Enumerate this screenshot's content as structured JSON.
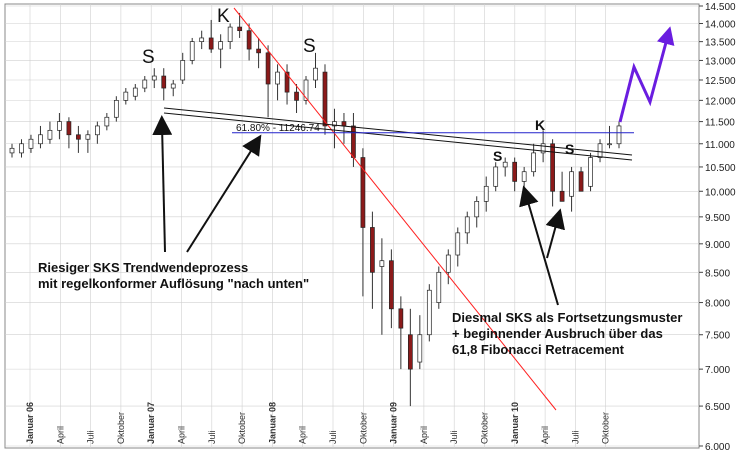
{
  "chart_data": {
    "type": "candlestick",
    "y_scale": "log",
    "ylim": [
      6.0,
      14.5
    ],
    "y_ticks": [
      "6.000",
      "6.500",
      "7.000",
      "7.500",
      "8.000",
      "8.500",
      "9.000",
      "9.500",
      "10.000",
      "10.500",
      "11.000",
      "11.500",
      "12.000",
      "12.500",
      "13.000",
      "13.500",
      "14.000",
      "14.500"
    ],
    "x_ticks": [
      {
        "label": "Januar 06",
        "year": true
      },
      {
        "label": "April",
        "year": false
      },
      {
        "label": "Juli",
        "year": false
      },
      {
        "label": "Oktober",
        "year": false
      },
      {
        "label": "Januar 07",
        "year": true
      },
      {
        "label": "April",
        "year": false
      },
      {
        "label": "Juli",
        "year": false
      },
      {
        "label": "Oktober",
        "year": false
      },
      {
        "label": "Januar 08",
        "year": true
      },
      {
        "label": "April",
        "year": false
      },
      {
        "label": "Juli",
        "year": false
      },
      {
        "label": "Oktober",
        "year": false
      },
      {
        "label": "Januar 09",
        "year": true
      },
      {
        "label": "April",
        "year": false
      },
      {
        "label": "Juli",
        "year": false
      },
      {
        "label": "Oktober",
        "year": false
      },
      {
        "label": "Januar 10",
        "year": true
      },
      {
        "label": "April",
        "year": false
      },
      {
        "label": "Juli",
        "year": false
      },
      {
        "label": "Oktober",
        "year": false
      }
    ],
    "candles": [
      {
        "o": 10.8,
        "h": 11.0,
        "l": 10.7,
        "c": 10.9
      },
      {
        "o": 10.8,
        "h": 11.1,
        "l": 10.7,
        "c": 11.0
      },
      {
        "o": 10.9,
        "h": 11.2,
        "l": 10.8,
        "c": 11.1
      },
      {
        "o": 11.0,
        "h": 11.4,
        "l": 10.9,
        "c": 11.2
      },
      {
        "o": 11.1,
        "h": 11.5,
        "l": 11.0,
        "c": 11.3
      },
      {
        "o": 11.3,
        "h": 11.7,
        "l": 11.1,
        "c": 11.5
      },
      {
        "o": 11.5,
        "h": 11.6,
        "l": 10.9,
        "c": 11.2
      },
      {
        "o": 11.2,
        "h": 11.4,
        "l": 10.8,
        "c": 11.1
      },
      {
        "o": 11.1,
        "h": 11.3,
        "l": 10.8,
        "c": 11.2
      },
      {
        "o": 11.2,
        "h": 11.5,
        "l": 11.0,
        "c": 11.4
      },
      {
        "o": 11.4,
        "h": 11.7,
        "l": 11.3,
        "c": 11.6
      },
      {
        "o": 11.6,
        "h": 12.1,
        "l": 11.5,
        "c": 12.0
      },
      {
        "o": 12.0,
        "h": 12.3,
        "l": 11.9,
        "c": 12.2
      },
      {
        "o": 12.1,
        "h": 12.4,
        "l": 12.0,
        "c": 12.3
      },
      {
        "o": 12.3,
        "h": 12.6,
        "l": 12.2,
        "c": 12.5
      },
      {
        "o": 12.5,
        "h": 12.8,
        "l": 12.3,
        "c": 12.6
      },
      {
        "o": 12.6,
        "h": 12.8,
        "l": 12.0,
        "c": 12.3
      },
      {
        "o": 12.3,
        "h": 12.5,
        "l": 12.1,
        "c": 12.4
      },
      {
        "o": 12.5,
        "h": 13.2,
        "l": 12.4,
        "c": 13.0
      },
      {
        "o": 13.0,
        "h": 13.6,
        "l": 12.9,
        "c": 13.5
      },
      {
        "o": 13.5,
        "h": 13.8,
        "l": 13.3,
        "c": 13.6
      },
      {
        "o": 13.6,
        "h": 14.1,
        "l": 13.2,
        "c": 13.3
      },
      {
        "o": 13.3,
        "h": 13.7,
        "l": 12.8,
        "c": 13.5
      },
      {
        "o": 13.5,
        "h": 14.0,
        "l": 13.3,
        "c": 13.9
      },
      {
        "o": 13.9,
        "h": 14.3,
        "l": 13.6,
        "c": 13.8
      },
      {
        "o": 13.8,
        "h": 14.0,
        "l": 13.0,
        "c": 13.3
      },
      {
        "o": 13.3,
        "h": 13.6,
        "l": 12.8,
        "c": 13.2
      },
      {
        "o": 13.2,
        "h": 13.4,
        "l": 11.6,
        "c": 12.4
      },
      {
        "o": 12.4,
        "h": 12.9,
        "l": 12.0,
        "c": 12.7
      },
      {
        "o": 12.7,
        "h": 12.9,
        "l": 11.9,
        "c": 12.2
      },
      {
        "o": 12.2,
        "h": 12.4,
        "l": 11.7,
        "c": 12.0
      },
      {
        "o": 12.0,
        "h": 12.6,
        "l": 11.9,
        "c": 12.5
      },
      {
        "o": 12.5,
        "h": 13.2,
        "l": 12.3,
        "c": 12.8
      },
      {
        "o": 12.7,
        "h": 12.9,
        "l": 11.2,
        "c": 11.4
      },
      {
        "o": 11.4,
        "h": 11.8,
        "l": 10.9,
        "c": 11.5
      },
      {
        "o": 11.5,
        "h": 11.7,
        "l": 11.0,
        "c": 11.4
      },
      {
        "o": 11.4,
        "h": 11.7,
        "l": 10.5,
        "c": 10.7
      },
      {
        "o": 10.7,
        "h": 10.9,
        "l": 8.1,
        "c": 9.3
      },
      {
        "o": 9.3,
        "h": 9.6,
        "l": 7.9,
        "c": 8.5
      },
      {
        "o": 8.6,
        "h": 9.1,
        "l": 7.5,
        "c": 8.7
      },
      {
        "o": 8.7,
        "h": 8.9,
        "l": 7.6,
        "c": 7.9
      },
      {
        "o": 7.9,
        "h": 8.1,
        "l": 7.0,
        "c": 7.6
      },
      {
        "o": 7.5,
        "h": 7.9,
        "l": 6.5,
        "c": 7.0
      },
      {
        "o": 7.1,
        "h": 7.8,
        "l": 7.0,
        "c": 7.5
      },
      {
        "o": 7.5,
        "h": 8.3,
        "l": 7.4,
        "c": 8.2
      },
      {
        "o": 8.0,
        "h": 8.6,
        "l": 7.9,
        "c": 8.5
      },
      {
        "o": 8.5,
        "h": 8.9,
        "l": 8.3,
        "c": 8.8
      },
      {
        "o": 8.8,
        "h": 9.3,
        "l": 8.6,
        "c": 9.2
      },
      {
        "o": 9.2,
        "h": 9.6,
        "l": 9.0,
        "c": 9.5
      },
      {
        "o": 9.5,
        "h": 9.9,
        "l": 9.3,
        "c": 9.8
      },
      {
        "o": 9.8,
        "h": 10.3,
        "l": 9.6,
        "c": 10.1
      },
      {
        "o": 10.1,
        "h": 10.6,
        "l": 10.0,
        "c": 10.5
      },
      {
        "o": 10.5,
        "h": 10.7,
        "l": 10.3,
        "c": 10.6
      },
      {
        "o": 10.6,
        "h": 10.7,
        "l": 10.0,
        "c": 10.2
      },
      {
        "o": 10.2,
        "h": 10.5,
        "l": 9.8,
        "c": 10.4
      },
      {
        "o": 10.4,
        "h": 11.0,
        "l": 10.3,
        "c": 10.8
      },
      {
        "o": 10.8,
        "h": 11.3,
        "l": 10.6,
        "c": 11.0
      },
      {
        "o": 11.0,
        "h": 11.1,
        "l": 9.7,
        "c": 10.0
      },
      {
        "o": 10.0,
        "h": 10.4,
        "l": 9.8,
        "c": 9.8
      },
      {
        "o": 9.9,
        "h": 10.5,
        "l": 9.6,
        "c": 10.4
      },
      {
        "o": 10.4,
        "h": 10.5,
        "l": 10.0,
        "c": 10.0
      },
      {
        "o": 10.1,
        "h": 10.8,
        "l": 10.0,
        "c": 10.7
      },
      {
        "o": 10.7,
        "h": 11.1,
        "l": 10.6,
        "c": 11.0
      },
      {
        "o": 11.0,
        "h": 11.4,
        "l": 10.9,
        "c": 11.0
      },
      {
        "o": 11.0,
        "h": 11.5,
        "l": 10.9,
        "c": 11.4
      }
    ],
    "fib_level": 11.246,
    "fib_label": "61.80% - 11246.74",
    "pattern_labels": [
      {
        "text": "S",
        "size": "big"
      },
      {
        "text": "K",
        "size": "big"
      },
      {
        "text": "S",
        "size": "big"
      },
      {
        "text": "S",
        "size": "small"
      },
      {
        "text": "K",
        "size": "small"
      },
      {
        "text": "S",
        "size": "small"
      }
    ],
    "annotation_left": {
      "line1": "Riesiger SKS Trendwendeprozess",
      "line2": "mit regelkonformer Auflösung \"nach unten\""
    },
    "annotation_right": {
      "line1": "Diesmal SKS als Fortsetzungsmuster",
      "line2": "+ beginnender Ausbruch über das",
      "line3": "61,8 Fibonacci Retracement"
    },
    "colors": {
      "up": "#ffffff",
      "down": "#8b1a1a",
      "wick": "#333333",
      "trend_red": "#ff2020",
      "fib_blue": "#2222cc",
      "projection": "#6a1de0",
      "grid": "#d0d0d0"
    }
  }
}
